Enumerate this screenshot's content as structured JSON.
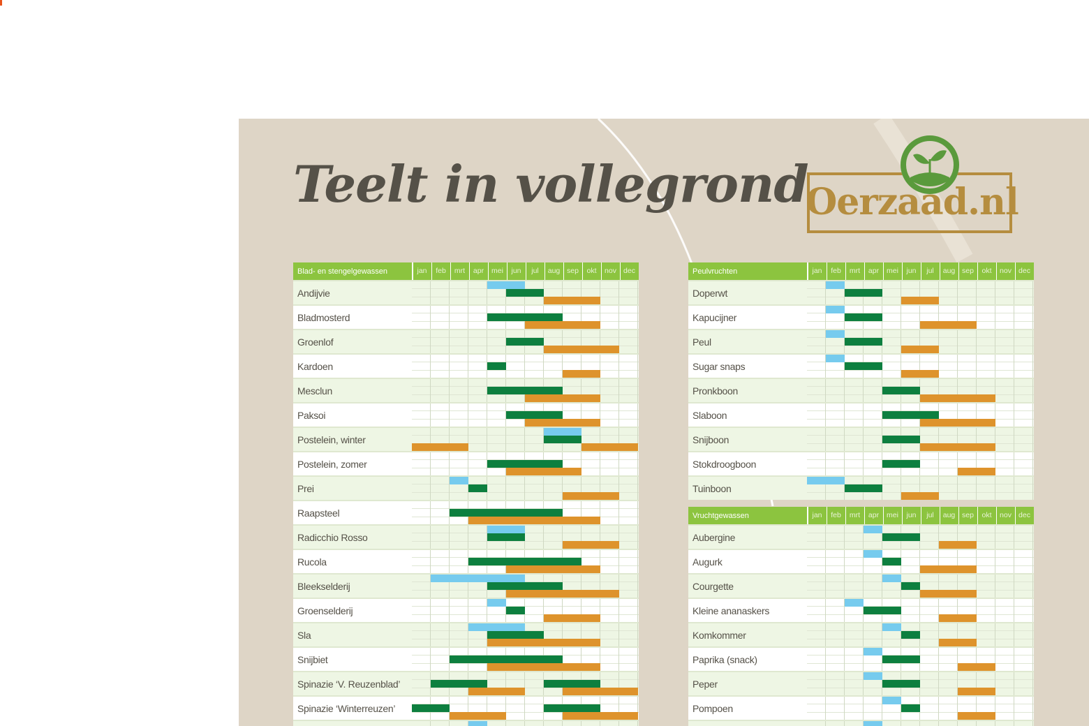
{
  "poster": {
    "title": "Teelt in vollegrond",
    "logo_text": "Oerzaad.nl"
  },
  "colors": {
    "sow": "#76cbee",
    "plant": "#0d7f3f",
    "harvest": "#de932c",
    "header": "#8cc43f",
    "accent": "#e8541c"
  },
  "months": [
    "jan",
    "feb",
    "mrt",
    "apr",
    "mei",
    "jun",
    "jul",
    "aug",
    "sep",
    "okt",
    "nov",
    "dec"
  ],
  "sections": [
    {
      "header": "Blad- en stengelgewassen",
      "rows": [
        {
          "name": "Andijvie",
          "bars": [
            {
              "t": "sow",
              "s": 4,
              "e": 6
            },
            {
              "t": "plant",
              "s": 5,
              "e": 7
            },
            {
              "t": "harvest",
              "s": 7,
              "e": 10
            }
          ]
        },
        {
          "name": "Bladmosterd",
          "bars": [
            {
              "t": "plant",
              "s": 4,
              "e": 8
            },
            {
              "t": "harvest",
              "s": 6,
              "e": 10
            }
          ]
        },
        {
          "name": "Groenlof",
          "bars": [
            {
              "t": "plant",
              "s": 5,
              "e": 7
            },
            {
              "t": "harvest",
              "s": 7,
              "e": 11
            }
          ]
        },
        {
          "name": "Kardoen",
          "bars": [
            {
              "t": "plant",
              "s": 4,
              "e": 5
            },
            {
              "t": "harvest",
              "s": 8,
              "e": 10
            }
          ]
        },
        {
          "name": "Mesclun",
          "bars": [
            {
              "t": "plant",
              "s": 4,
              "e": 8
            },
            {
              "t": "harvest",
              "s": 6,
              "e": 10
            }
          ]
        },
        {
          "name": "Paksoi",
          "bars": [
            {
              "t": "plant",
              "s": 5,
              "e": 8
            },
            {
              "t": "harvest",
              "s": 6,
              "e": 10
            }
          ]
        },
        {
          "name": "Postelein, winter",
          "bars": [
            {
              "t": "sow",
              "s": 7,
              "e": 9
            },
            {
              "t": "plant",
              "s": 7,
              "e": 9
            },
            {
              "t": "harvest",
              "s": 0,
              "e": 3
            },
            {
              "t": "harvest",
              "s": 9,
              "e": 12
            }
          ]
        },
        {
          "name": "Postelein, zomer",
          "bars": [
            {
              "t": "plant",
              "s": 4,
              "e": 8
            },
            {
              "t": "harvest",
              "s": 5,
              "e": 9
            }
          ]
        },
        {
          "name": "Prei",
          "bars": [
            {
              "t": "sow",
              "s": 2,
              "e": 3
            },
            {
              "t": "plant",
              "s": 3,
              "e": 4
            },
            {
              "t": "harvest",
              "s": 8,
              "e": 11
            }
          ]
        },
        {
          "name": "Raapsteel",
          "bars": [
            {
              "t": "plant",
              "s": 2,
              "e": 8
            },
            {
              "t": "harvest",
              "s": 3,
              "e": 10
            }
          ]
        },
        {
          "name": "Radicchio Rosso",
          "bars": [
            {
              "t": "sow",
              "s": 4,
              "e": 6
            },
            {
              "t": "plant",
              "s": 4,
              "e": 6
            },
            {
              "t": "harvest",
              "s": 8,
              "e": 11
            }
          ]
        },
        {
          "name": "Rucola",
          "bars": [
            {
              "t": "plant",
              "s": 3,
              "e": 9
            },
            {
              "t": "harvest",
              "s": 5,
              "e": 10
            }
          ]
        },
        {
          "name": "Bleekselderij",
          "bars": [
            {
              "t": "sow",
              "s": 1,
              "e": 6
            },
            {
              "t": "plant",
              "s": 4,
              "e": 8
            },
            {
              "t": "harvest",
              "s": 5,
              "e": 11
            }
          ]
        },
        {
          "name": "Groenselderij",
          "bars": [
            {
              "t": "sow",
              "s": 4,
              "e": 5
            },
            {
              "t": "plant",
              "s": 5,
              "e": 6
            },
            {
              "t": "harvest",
              "s": 7,
              "e": 10
            }
          ]
        },
        {
          "name": "Sla",
          "bars": [
            {
              "t": "sow",
              "s": 3,
              "e": 6
            },
            {
              "t": "plant",
              "s": 4,
              "e": 7
            },
            {
              "t": "harvest",
              "s": 4,
              "e": 10
            }
          ]
        },
        {
          "name": "Snijbiet",
          "bars": [
            {
              "t": "plant",
              "s": 2,
              "e": 8
            },
            {
              "t": "harvest",
              "s": 4,
              "e": 10
            }
          ]
        },
        {
          "name": "Spinazie ‘V. Reuzenblad’",
          "bars": [
            {
              "t": "plant",
              "s": 1,
              "e": 4
            },
            {
              "t": "plant",
              "s": 7,
              "e": 10
            },
            {
              "t": "harvest",
              "s": 3,
              "e": 6
            },
            {
              "t": "harvest",
              "s": 8,
              "e": 12
            }
          ]
        },
        {
          "name": "Spinazie ‘Winterreuzen’",
          "bars": [
            {
              "t": "plant",
              "s": 0,
              "e": 2
            },
            {
              "t": "plant",
              "s": 7,
              "e": 10
            },
            {
              "t": "harvest",
              "s": 2,
              "e": 5
            },
            {
              "t": "harvest",
              "s": 8,
              "e": 12
            }
          ]
        },
        {
          "name": "",
          "bars": [
            {
              "t": "sow",
              "s": 3,
              "e": 4
            }
          ]
        }
      ]
    },
    {
      "header": "Peulvruchten",
      "rows": [
        {
          "name": "Doperwt",
          "bars": [
            {
              "t": "sow",
              "s": 1,
              "e": 2
            },
            {
              "t": "plant",
              "s": 2,
              "e": 4
            },
            {
              "t": "harvest",
              "s": 5,
              "e": 7
            }
          ]
        },
        {
          "name": "Kapucijner",
          "bars": [
            {
              "t": "sow",
              "s": 1,
              "e": 2
            },
            {
              "t": "plant",
              "s": 2,
              "e": 4
            },
            {
              "t": "harvest",
              "s": 6,
              "e": 9
            }
          ]
        },
        {
          "name": "Peul",
          "bars": [
            {
              "t": "sow",
              "s": 1,
              "e": 2
            },
            {
              "t": "plant",
              "s": 2,
              "e": 4
            },
            {
              "t": "harvest",
              "s": 5,
              "e": 7
            }
          ]
        },
        {
          "name": "Sugar snaps",
          "bars": [
            {
              "t": "sow",
              "s": 1,
              "e": 2
            },
            {
              "t": "plant",
              "s": 2,
              "e": 4
            },
            {
              "t": "harvest",
              "s": 5,
              "e": 7
            }
          ]
        },
        {
          "name": "Pronkboon",
          "bars": [
            {
              "t": "plant",
              "s": 4,
              "e": 6
            },
            {
              "t": "harvest",
              "s": 6,
              "e": 10
            }
          ]
        },
        {
          "name": "Slaboon",
          "bars": [
            {
              "t": "plant",
              "s": 4,
              "e": 7
            },
            {
              "t": "harvest",
              "s": 6,
              "e": 10
            }
          ]
        },
        {
          "name": "Snijboon",
          "bars": [
            {
              "t": "plant",
              "s": 4,
              "e": 6
            },
            {
              "t": "harvest",
              "s": 6,
              "e": 10
            }
          ]
        },
        {
          "name": "Stokdroogboon",
          "bars": [
            {
              "t": "plant",
              "s": 4,
              "e": 6
            },
            {
              "t": "harvest",
              "s": 8,
              "e": 10
            }
          ]
        },
        {
          "name": "Tuinboon",
          "bars": [
            {
              "t": "sow",
              "s": 0,
              "e": 2
            },
            {
              "t": "plant",
              "s": 2,
              "e": 4
            },
            {
              "t": "harvest",
              "s": 5,
              "e": 7
            }
          ]
        }
      ]
    },
    {
      "header": "Vruchtgewassen",
      "rows": [
        {
          "name": "Aubergine",
          "bars": [
            {
              "t": "sow",
              "s": 3,
              "e": 4
            },
            {
              "t": "plant",
              "s": 4,
              "e": 6
            },
            {
              "t": "harvest",
              "s": 7,
              "e": 9
            }
          ]
        },
        {
          "name": "Augurk",
          "bars": [
            {
              "t": "sow",
              "s": 3,
              "e": 4
            },
            {
              "t": "plant",
              "s": 4,
              "e": 5
            },
            {
              "t": "harvest",
              "s": 6,
              "e": 9
            }
          ]
        },
        {
          "name": "Courgette",
          "bars": [
            {
              "t": "sow",
              "s": 4,
              "e": 5
            },
            {
              "t": "plant",
              "s": 5,
              "e": 6
            },
            {
              "t": "harvest",
              "s": 6,
              "e": 9
            }
          ]
        },
        {
          "name": "Kleine ananaskers",
          "bars": [
            {
              "t": "sow",
              "s": 2,
              "e": 3
            },
            {
              "t": "plant",
              "s": 3,
              "e": 5
            },
            {
              "t": "harvest",
              "s": 7,
              "e": 9
            }
          ]
        },
        {
          "name": "Komkommer",
          "bars": [
            {
              "t": "sow",
              "s": 4,
              "e": 5
            },
            {
              "t": "plant",
              "s": 5,
              "e": 6
            },
            {
              "t": "harvest",
              "s": 7,
              "e": 9
            }
          ]
        },
        {
          "name": "Paprika (snack)",
          "bars": [
            {
              "t": "sow",
              "s": 3,
              "e": 4
            },
            {
              "t": "plant",
              "s": 4,
              "e": 6
            },
            {
              "t": "harvest",
              "s": 8,
              "e": 10
            }
          ]
        },
        {
          "name": "Peper",
          "bars": [
            {
              "t": "sow",
              "s": 3,
              "e": 4
            },
            {
              "t": "plant",
              "s": 4,
              "e": 6
            },
            {
              "t": "harvest",
              "s": 8,
              "e": 10
            }
          ]
        },
        {
          "name": "Pompoen",
          "bars": [
            {
              "t": "sow",
              "s": 4,
              "e": 5
            },
            {
              "t": "plant",
              "s": 5,
              "e": 6
            },
            {
              "t": "harvest",
              "s": 8,
              "e": 10
            }
          ]
        },
        {
          "name": "",
          "bars": [
            {
              "t": "sow",
              "s": 3,
              "e": 4
            }
          ]
        }
      ]
    }
  ]
}
